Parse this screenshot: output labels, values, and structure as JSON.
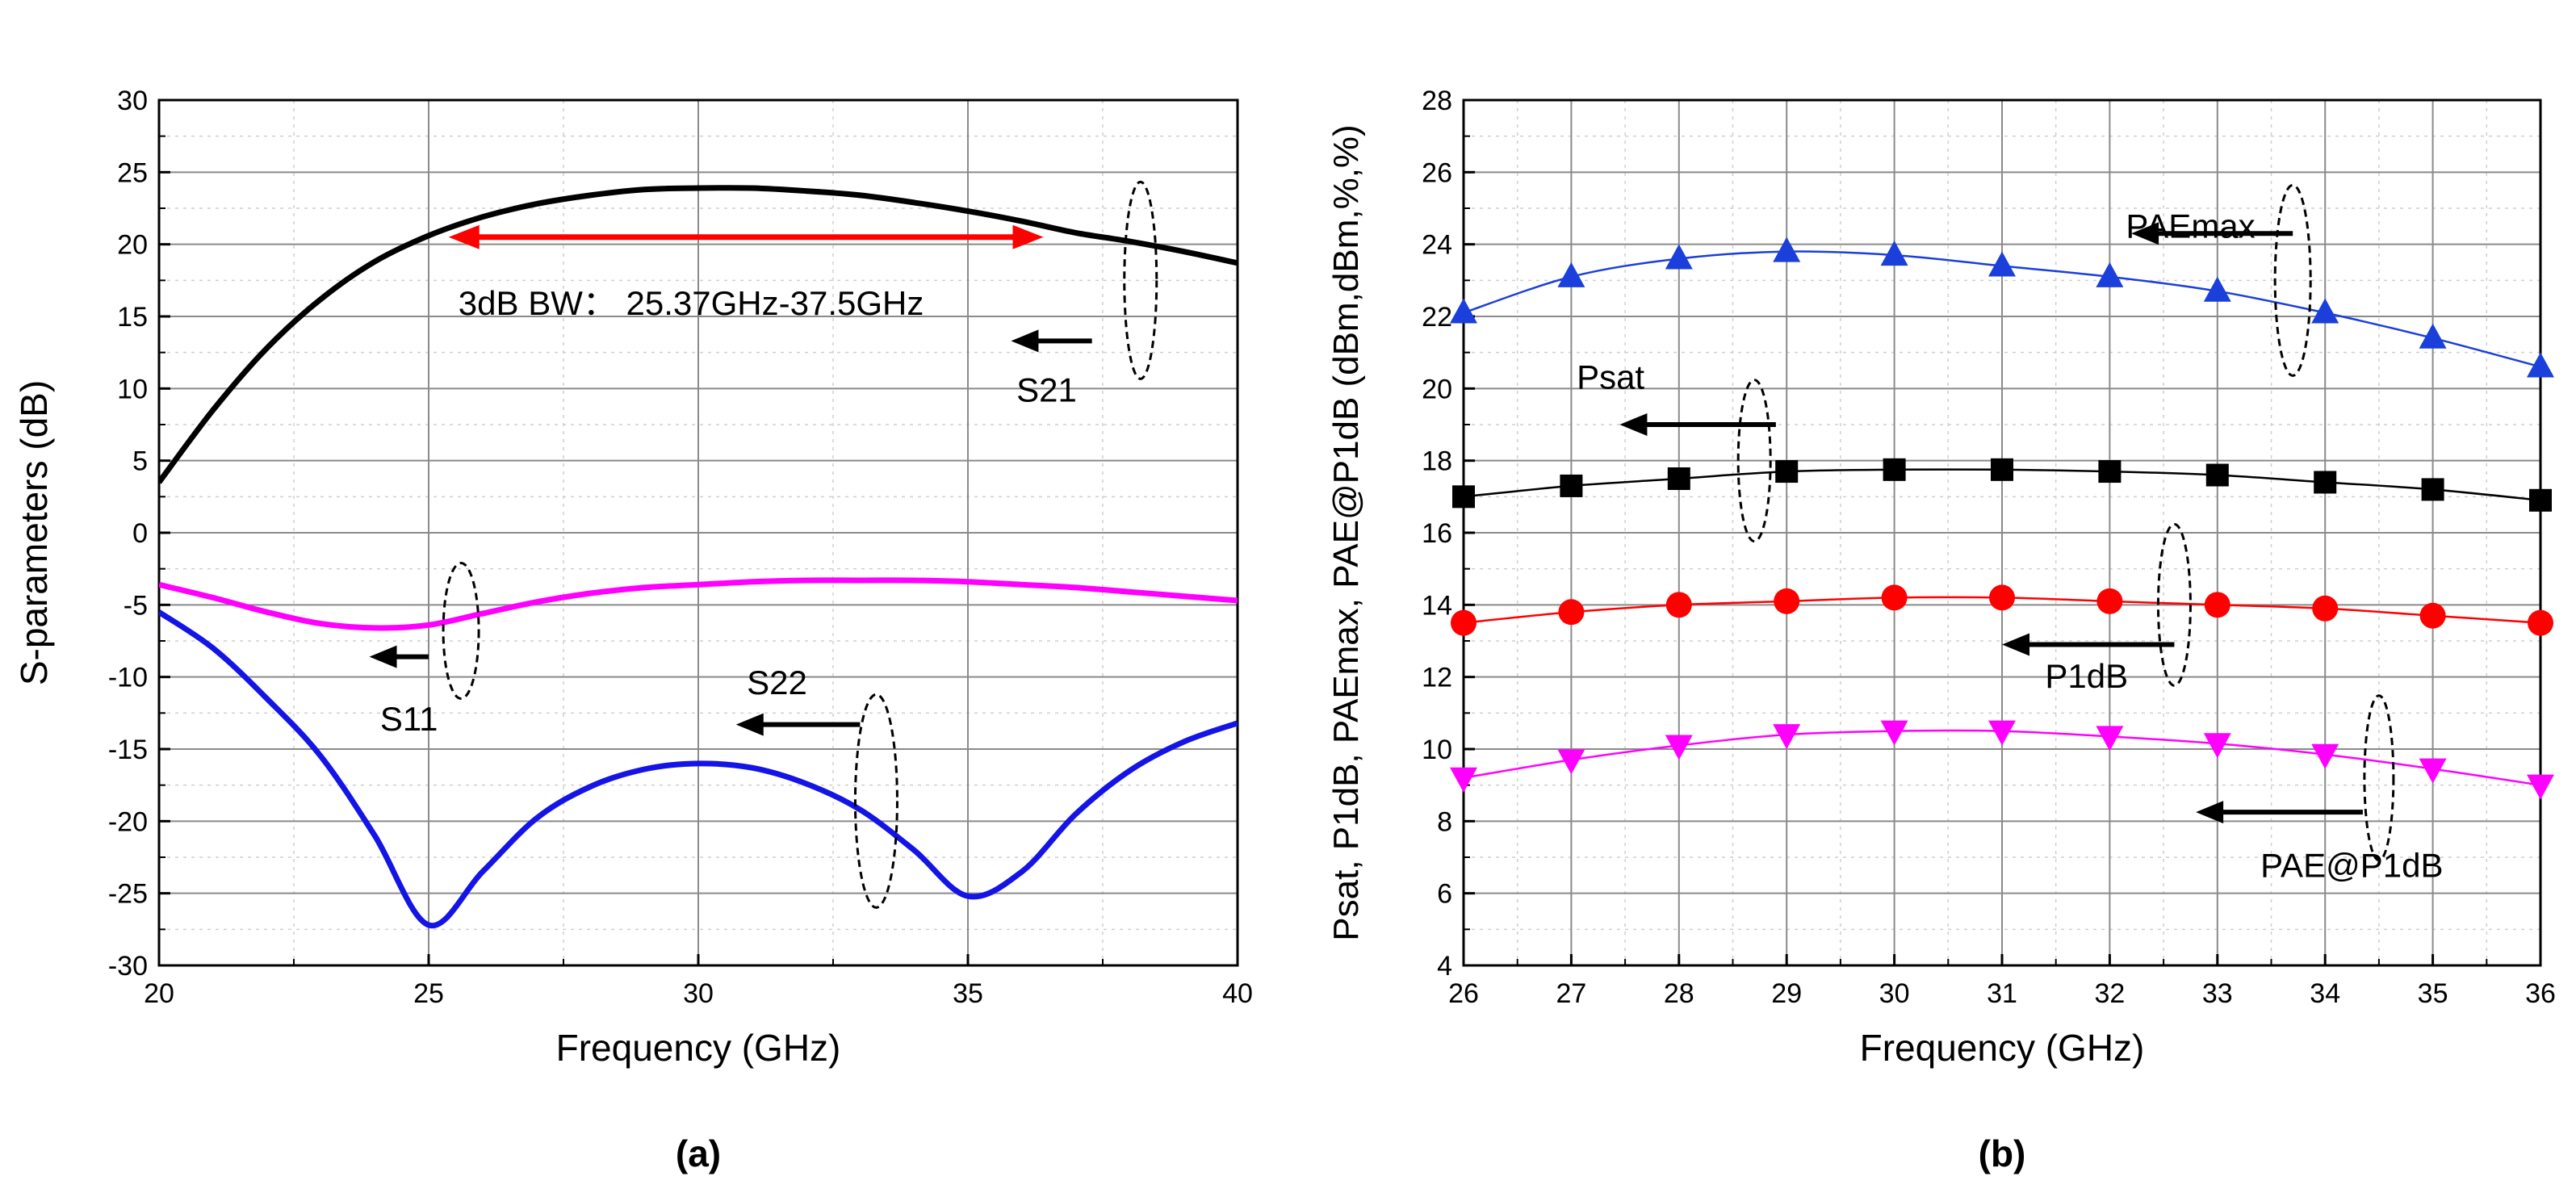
{
  "chart_data": [
    {
      "type": "line",
      "panel_label": "(a)",
      "xlabel": "Frequency (GHz)",
      "ylabel": "S-parameters (dB)",
      "xlim": [
        20,
        40
      ],
      "ylim": [
        -30,
        30
      ],
      "xticks": [
        "20",
        "25",
        "30",
        "35",
        "40"
      ],
      "yticks": [
        "-30",
        "-25",
        "-20",
        "-15",
        "-10",
        "-5",
        "0",
        "5",
        "10",
        "15",
        "20",
        "25",
        "30"
      ],
      "grid": true,
      "x": [
        20,
        21,
        22,
        23,
        24,
        25,
        26,
        27,
        28,
        29,
        30,
        31,
        32,
        33,
        34,
        35,
        36,
        37,
        38,
        39,
        40
      ],
      "series": [
        {
          "name": "S21",
          "color": "#000000",
          "values": [
            3.5,
            8.5,
            12.8,
            16.2,
            18.8,
            20.6,
            21.9,
            22.8,
            23.4,
            23.8,
            23.9,
            23.9,
            23.7,
            23.4,
            22.9,
            22.3,
            21.6,
            20.8,
            20.2,
            19.5,
            18.7
          ]
        },
        {
          "name": "S11",
          "color": "#ff00ff",
          "values": [
            -3.6,
            -4.5,
            -5.5,
            -6.3,
            -6.6,
            -6.4,
            -5.6,
            -4.8,
            -4.2,
            -3.8,
            -3.6,
            -3.4,
            -3.3,
            -3.3,
            -3.3,
            -3.4,
            -3.6,
            -3.8,
            -4.1,
            -4.4,
            -4.7
          ]
        },
        {
          "name": "S22",
          "color": "#1414e6",
          "values": [
            -5.5,
            -8.0,
            -11.5,
            -15.5,
            -21.0,
            -27.2,
            -23.5,
            -19.8,
            -17.6,
            -16.4,
            -16.0,
            -16.3,
            -17.4,
            -19.2,
            -22.0,
            -25.2,
            -23.5,
            -19.5,
            -16.5,
            -14.5,
            -13.2
          ]
        }
      ],
      "annotations": {
        "bandwidth": "3dB BW： 25.37GHz-37.5GHz",
        "bandwidth_range": [
          25.37,
          37.5
        ],
        "s21_label": "S21",
        "s11_label": "S11",
        "s22_label": "S22"
      }
    },
    {
      "type": "line",
      "panel_label": "(b)",
      "xlabel": "Frequency (GHz)",
      "ylabel": "Psat, P1dB, PAEmax, PAE@P1dB (dBm,dBm,%,%)",
      "xlim": [
        26,
        36
      ],
      "ylim": [
        4,
        28
      ],
      "xticks": [
        "26",
        "27",
        "28",
        "29",
        "30",
        "31",
        "32",
        "33",
        "34",
        "35",
        "36"
      ],
      "yticks": [
        "4",
        "6",
        "8",
        "10",
        "12",
        "14",
        "16",
        "18",
        "20",
        "22",
        "24",
        "26",
        "28"
      ],
      "grid": true,
      "x": [
        26,
        27,
        28,
        29,
        30,
        31,
        32,
        33,
        34,
        35,
        36
      ],
      "series": [
        {
          "name": "PAEmax",
          "color": "#1a3fdb",
          "marker": "triangle-up",
          "values": [
            22.1,
            23.1,
            23.6,
            23.8,
            23.7,
            23.4,
            23.1,
            22.7,
            22.1,
            21.4,
            20.6
          ]
        },
        {
          "name": "Psat",
          "color": "#000000",
          "marker": "square",
          "values": [
            17.0,
            17.3,
            17.5,
            17.7,
            17.75,
            17.75,
            17.7,
            17.6,
            17.4,
            17.2,
            16.9
          ]
        },
        {
          "name": "P1dB",
          "color": "#ff0000",
          "marker": "circle",
          "values": [
            13.5,
            13.8,
            14.0,
            14.1,
            14.2,
            14.2,
            14.1,
            14.0,
            13.9,
            13.7,
            13.5
          ]
        },
        {
          "name": "PAE@P1dB",
          "color": "#ff00ff",
          "marker": "triangle-down",
          "values": [
            9.2,
            9.7,
            10.1,
            10.4,
            10.5,
            10.5,
            10.35,
            10.15,
            9.85,
            9.45,
            9.0
          ]
        }
      ],
      "annotations": {
        "paemax_label": "PAEmax",
        "psat_label": "Psat",
        "p1db_label": "P1dB",
        "pae_p1db_label": "PAE@P1dB"
      }
    }
  ]
}
